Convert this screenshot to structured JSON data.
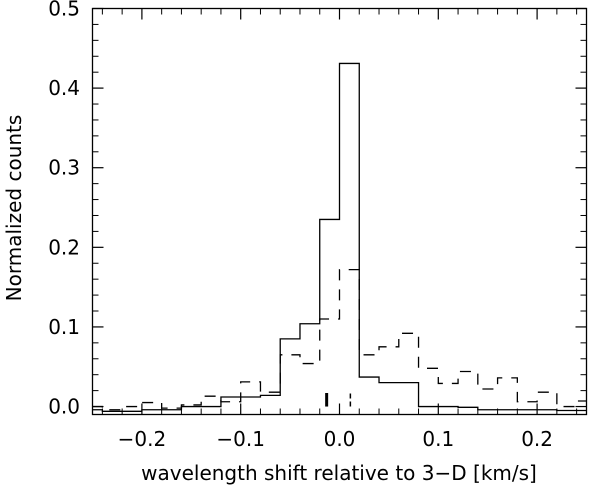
{
  "chart_data": {
    "type": "histogram",
    "title": "",
    "xlabel": "wavelength shift relative to 3−D [km/s]",
    "ylabel": "Normalized counts",
    "xlim": [
      -0.25,
      0.25
    ],
    "ylim": [
      -0.01,
      0.5
    ],
    "x_ticks": [
      -0.2,
      -0.1,
      0.0,
      0.1,
      0.2
    ],
    "x_tick_labels": [
      "−0.2",
      "−0.1",
      "0.0",
      "0.1",
      "0.2"
    ],
    "y_ticks": [
      0.0,
      0.1,
      0.2,
      0.3,
      0.4,
      0.5
    ],
    "y_tick_labels": [
      "0.0",
      "0.1",
      "0.2",
      "0.3",
      "0.4",
      "0.5"
    ],
    "grid": false,
    "legend": "none",
    "series": [
      {
        "style": "solid",
        "color": "#000000",
        "bins": [
          {
            "x0": -0.26,
            "x1": -0.24,
            "value": -0.004
          },
          {
            "x0": -0.24,
            "x1": -0.2,
            "value": -0.006
          },
          {
            "x0": -0.2,
            "x1": -0.16,
            "value": -0.004
          },
          {
            "x0": -0.16,
            "x1": -0.12,
            "value": 0.0
          },
          {
            "x0": -0.12,
            "x1": -0.08,
            "value": 0.012
          },
          {
            "x0": -0.08,
            "x1": -0.06,
            "value": 0.014
          },
          {
            "x0": -0.06,
            "x1": -0.04,
            "value": 0.085
          },
          {
            "x0": -0.04,
            "x1": -0.02,
            "value": 0.104
          },
          {
            "x0": -0.02,
            "x1": 0.0,
            "value": 0.235
          },
          {
            "x0": 0.0,
            "x1": 0.02,
            "value": 0.431
          },
          {
            "x0": 0.02,
            "x1": 0.04,
            "value": 0.037
          },
          {
            "x0": 0.04,
            "x1": 0.06,
            "value": 0.03
          },
          {
            "x0": 0.06,
            "x1": 0.08,
            "value": 0.03
          },
          {
            "x0": 0.08,
            "x1": 0.12,
            "value": 0.0
          },
          {
            "x0": 0.12,
            "x1": 0.14,
            "value": -0.001
          },
          {
            "x0": 0.14,
            "x1": 0.22,
            "value": -0.004
          },
          {
            "x0": 0.22,
            "x1": 0.26,
            "value": -0.005
          }
        ]
      },
      {
        "style": "dashed",
        "color": "#000000",
        "bins": [
          {
            "x0": -0.26,
            "x1": -0.24,
            "value": 0.0
          },
          {
            "x0": -0.24,
            "x1": -0.22,
            "value": -0.004
          },
          {
            "x0": -0.22,
            "x1": -0.2,
            "value": 0.0
          },
          {
            "x0": -0.2,
            "x1": -0.18,
            "value": 0.005
          },
          {
            "x0": -0.18,
            "x1": -0.16,
            "value": -0.002
          },
          {
            "x0": -0.16,
            "x1": -0.14,
            "value": 0.002
          },
          {
            "x0": -0.14,
            "x1": -0.12,
            "value": 0.013
          },
          {
            "x0": -0.12,
            "x1": -0.1,
            "value": 0.006
          },
          {
            "x0": -0.1,
            "x1": -0.08,
            "value": 0.031
          },
          {
            "x0": -0.08,
            "x1": -0.06,
            "value": 0.018
          },
          {
            "x0": -0.06,
            "x1": -0.04,
            "value": 0.065
          },
          {
            "x0": -0.04,
            "x1": -0.02,
            "value": 0.054
          },
          {
            "x0": -0.02,
            "x1": 0.0,
            "value": 0.11
          },
          {
            "x0": 0.0,
            "x1": 0.02,
            "value": 0.172
          },
          {
            "x0": 0.02,
            "x1": 0.04,
            "value": 0.065
          },
          {
            "x0": 0.04,
            "x1": 0.06,
            "value": 0.075
          },
          {
            "x0": 0.06,
            "x1": 0.08,
            "value": 0.092
          },
          {
            "x0": 0.08,
            "x1": 0.1,
            "value": 0.048
          },
          {
            "x0": 0.1,
            "x1": 0.12,
            "value": 0.029
          },
          {
            "x0": 0.12,
            "x1": 0.14,
            "value": 0.044
          },
          {
            "x0": 0.14,
            "x1": 0.16,
            "value": 0.022
          },
          {
            "x0": 0.16,
            "x1": 0.18,
            "value": 0.036
          },
          {
            "x0": 0.18,
            "x1": 0.2,
            "value": 0.006
          },
          {
            "x0": 0.2,
            "x1": 0.22,
            "value": 0.018
          },
          {
            "x0": 0.22,
            "x1": 0.24,
            "value": 0.0
          },
          {
            "x0": 0.24,
            "x1": 0.26,
            "value": 0.007
          }
        ]
      }
    ],
    "markers": [
      {
        "x": -0.013,
        "y0": 0.0,
        "y1": 0.017,
        "style": "solid"
      },
      {
        "x": 0.011,
        "y0": 0.0,
        "y1": 0.017,
        "style": "dashed"
      }
    ]
  }
}
